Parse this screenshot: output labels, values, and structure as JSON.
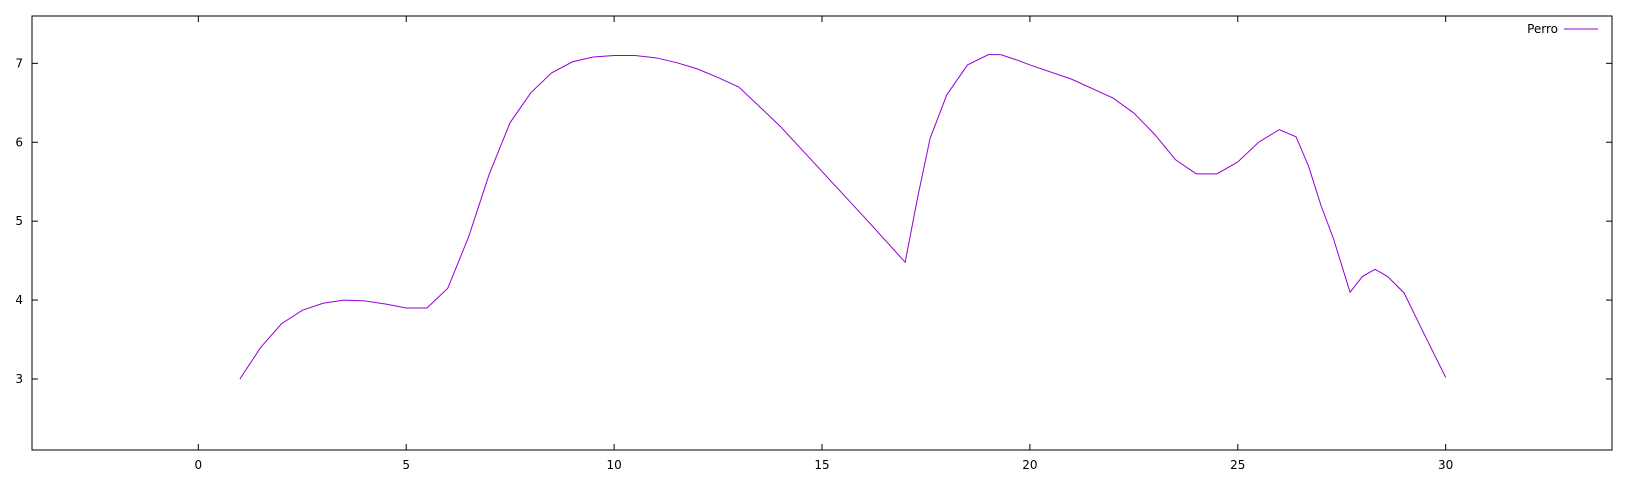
{
  "chart_data": {
    "type": "line",
    "title": "",
    "xlabel": "",
    "ylabel": "",
    "xlim": [
      -4,
      34
    ],
    "ylim": [
      2.1,
      7.6
    ],
    "x_ticks": [
      0,
      5,
      10,
      15,
      20,
      25,
      30
    ],
    "y_ticks": [
      3,
      4,
      5,
      6,
      7
    ],
    "grid": false,
    "legend": {
      "position": "top-right"
    },
    "series": [
      {
        "name": "Perro",
        "color": "#9400d3",
        "points": [
          [
            1,
            3.0
          ],
          [
            1.5,
            3.4
          ],
          [
            2,
            3.7
          ],
          [
            2.5,
            3.87
          ],
          [
            3,
            3.96
          ],
          [
            3.5,
            4.0
          ],
          [
            4,
            3.99
          ],
          [
            4.5,
            3.95
          ],
          [
            5,
            3.9
          ],
          [
            5.5,
            3.9
          ],
          [
            6,
            4.15
          ],
          [
            6.5,
            4.8
          ],
          [
            7,
            5.6
          ],
          [
            7.5,
            6.25
          ],
          [
            8,
            6.63
          ],
          [
            8.5,
            6.88
          ],
          [
            9,
            7.02
          ],
          [
            9.5,
            7.08
          ],
          [
            10,
            7.1
          ],
          [
            10.5,
            7.1
          ],
          [
            11,
            7.07
          ],
          [
            11.5,
            7.01
          ],
          [
            12,
            6.93
          ],
          [
            12.5,
            6.82
          ],
          [
            13,
            6.7
          ],
          [
            14,
            6.2
          ],
          [
            15,
            5.63
          ],
          [
            16,
            5.06
          ],
          [
            17,
            4.48
          ],
          [
            17.3,
            5.3
          ],
          [
            17.6,
            6.05
          ],
          [
            18,
            6.6
          ],
          [
            18.5,
            6.98
          ],
          [
            19,
            7.11
          ],
          [
            19.3,
            7.11
          ],
          [
            19.7,
            7.04
          ],
          [
            20,
            6.98
          ],
          [
            21,
            6.8
          ],
          [
            22,
            6.56
          ],
          [
            22.5,
            6.37
          ],
          [
            23,
            6.1
          ],
          [
            23.5,
            5.78
          ],
          [
            24,
            5.6
          ],
          [
            24.5,
            5.6
          ],
          [
            25,
            5.75
          ],
          [
            25.5,
            6.0
          ],
          [
            26,
            6.16
          ],
          [
            26.4,
            6.07
          ],
          [
            26.7,
            5.7
          ],
          [
            27,
            5.2
          ],
          [
            27.3,
            4.78
          ],
          [
            27.7,
            4.1
          ],
          [
            28,
            4.3
          ],
          [
            28.3,
            4.39
          ],
          [
            28.6,
            4.3
          ],
          [
            29,
            4.09
          ],
          [
            29.5,
            3.55
          ],
          [
            30,
            3.02
          ]
        ]
      }
    ]
  }
}
